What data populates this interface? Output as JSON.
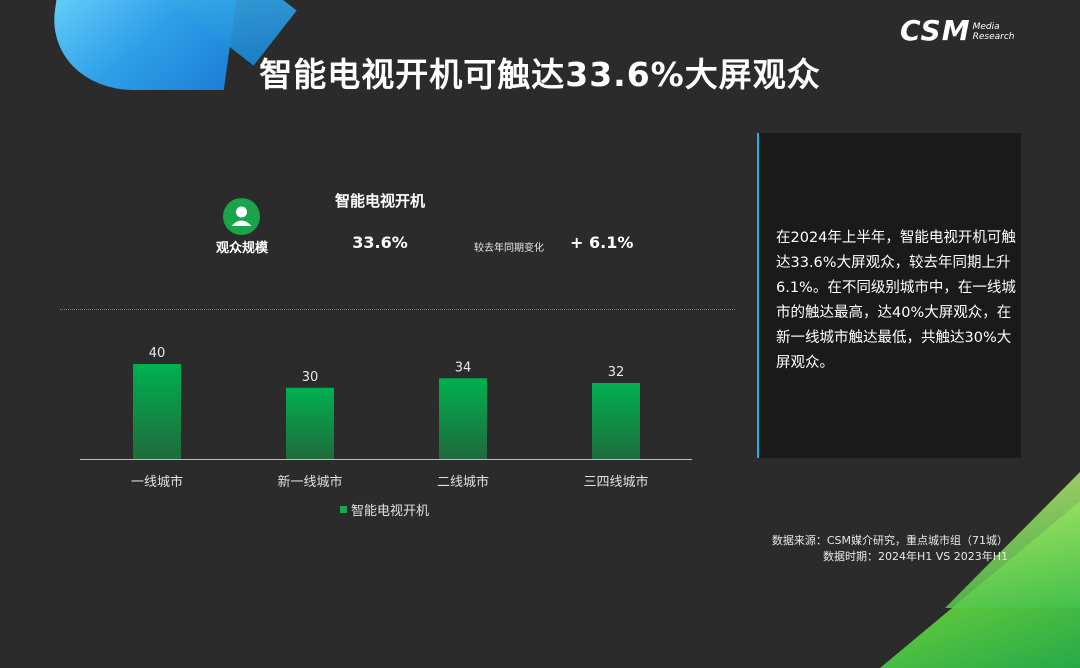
{
  "header": {
    "title": "智能电视开机可触达33.6%大屏观众",
    "logo_main": "CSM",
    "logo_sub_1": "Media",
    "logo_sub_2": "Research"
  },
  "summary": {
    "heading": "智能电视开机",
    "metric_label": "观众规模",
    "value": "33.6%",
    "yoy_label": "较去年同期变化",
    "yoy_value": "+ 6.1%"
  },
  "chart_data": {
    "type": "bar",
    "categories": [
      "一线城市",
      "新一线城市",
      "二线城市",
      "三四线城市"
    ],
    "series": [
      {
        "name": "智能电视开机",
        "values": [
          40,
          30,
          34,
          32
        ]
      }
    ],
    "title": "",
    "xlabel": "",
    "ylabel": "",
    "ylim": [
      0,
      40
    ],
    "grid": false,
    "legend": "bottom",
    "data_labels": true,
    "colors": {
      "bar_top": "#00b050",
      "bar_bottom": "#1f6b3c"
    }
  },
  "panel": {
    "text": "在2024年上半年，智能电视开机可触达33.6%大屏观众，较去年同期上升6.1%。在不同级别城市中，在一线城市的触达最高，达40%大屏观众，在新一线城市触达最低，共触达30%大屏观众。"
  },
  "source": {
    "line1": "数据来源：CSM媒介研究，重点城市组（71城）",
    "line2": "数据时期：2024年H1 VS 2023年H1"
  },
  "colors": {
    "background": "#2b2b2b",
    "accent_green": "#1aa34a",
    "accent_blue": "#1fb4e8"
  }
}
